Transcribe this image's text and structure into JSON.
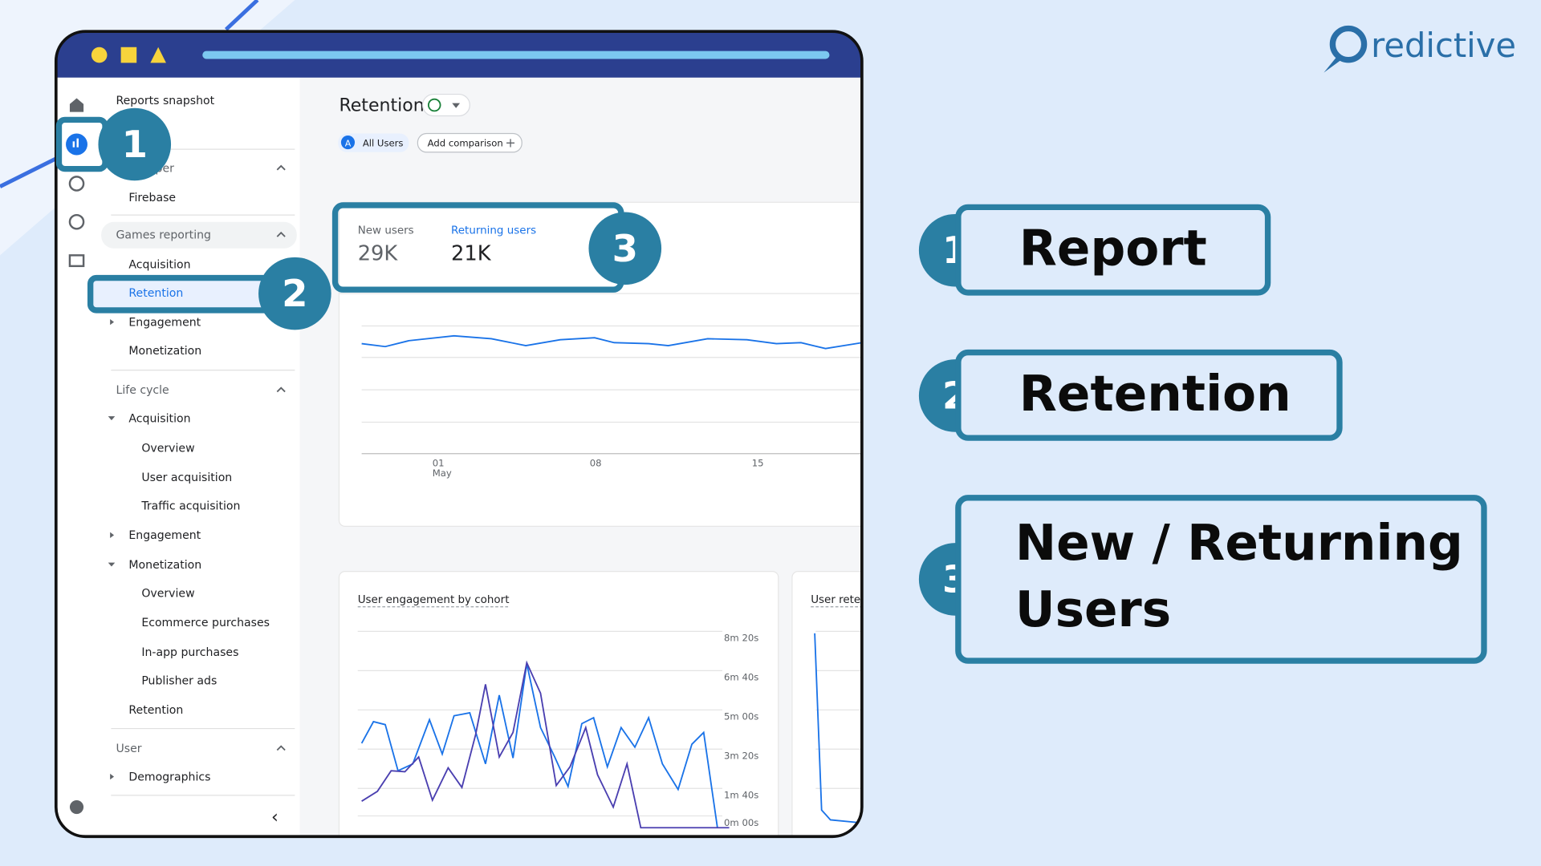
{
  "logo": "redictive",
  "sidebar": {
    "items": [
      "Reports snapshot",
      "Developer",
      "Firebase",
      "Games reporting",
      "Acquisition",
      "Retention",
      "Engagement",
      "Monetization",
      "Life cycle",
      "Acquisition",
      "Overview",
      "User acquisition",
      "Traffic acquisition",
      "Engagement",
      "Monetization",
      "Overview",
      "Ecommerce purchases",
      "In-app purchases",
      "Publisher ads",
      "Retention",
      "User",
      "Demographics"
    ]
  },
  "main": {
    "title": "Retention",
    "chips": {
      "avatar": "A",
      "segment": "All Users",
      "add": "Add comparison"
    },
    "summary": {
      "new_label": "New users",
      "new_value": "29K",
      "returning_label": "Returning users",
      "returning_value": "21K"
    },
    "chart_axis": [
      "01",
      "May",
      "08",
      "15"
    ],
    "cohort_card": {
      "title": "User engagement by cohort",
      "yticks": [
        "8m 20s",
        "6m 40s",
        "5m 00s",
        "3m 20s",
        "1m 40s",
        "0m 00s"
      ]
    },
    "retention_card": {
      "title": "User retention"
    }
  },
  "badges": [
    "1",
    "2",
    "3"
  ],
  "callouts": {
    "report": "Report",
    "retention": "Retention",
    "users": [
      "New / Returning",
      "Users"
    ]
  }
}
